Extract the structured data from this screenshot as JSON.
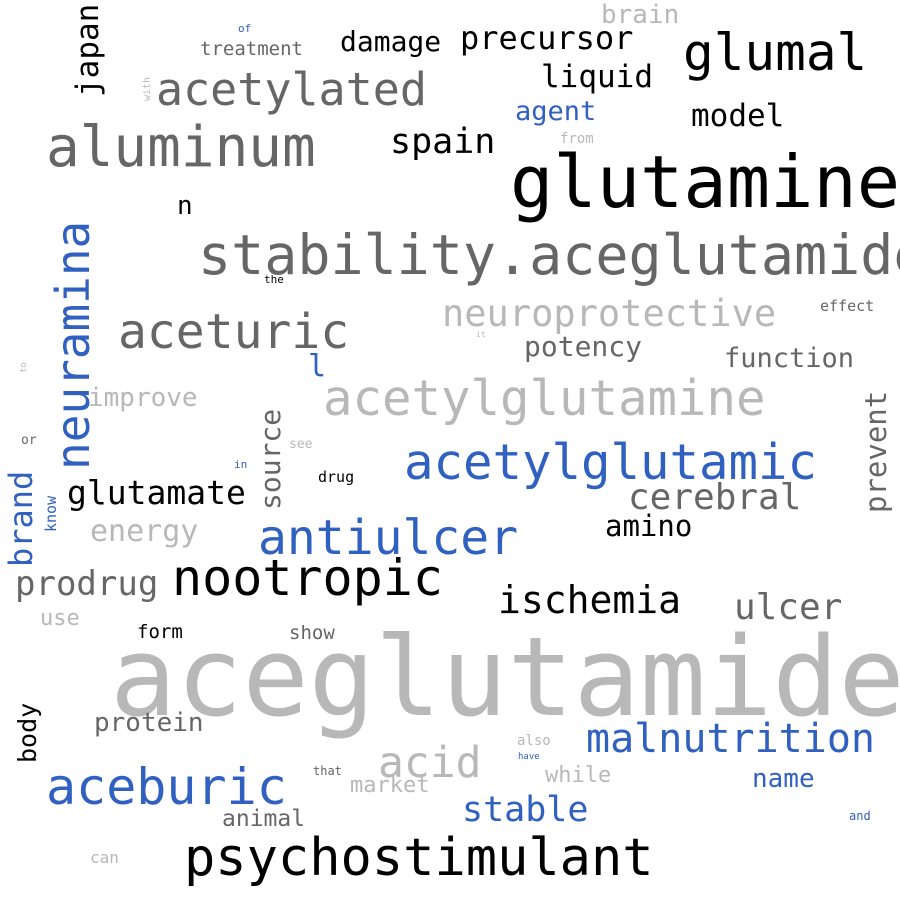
{
  "palette": {
    "black": "#000000",
    "dark_gray": "#666666",
    "light_gray": "#b8b8b8",
    "blue": "#3060c0"
  },
  "words": [
    "aceglutamide",
    "glutamine",
    "stability.aceglutamide",
    "aluminum",
    "acetylglutamine",
    "acetylglutamic",
    "nootropic",
    "psychostimulant",
    "glumal",
    "neuramina",
    "aceturic",
    "acetylated",
    "antiulcer",
    "aceburic",
    "malnutrition",
    "neuroprotective",
    "ischemia",
    "acid",
    "cerebral",
    "precursor",
    "glutamate",
    "spain",
    "prodrug",
    "ulcer",
    "damage",
    "stable",
    "brand",
    "liquid",
    "model",
    "japan",
    "potency",
    "amino",
    "function",
    "agent",
    "energy",
    "source",
    "prevent",
    "improve",
    "protein",
    "name",
    "brain",
    "treatment",
    "animal",
    "market",
    "while",
    "body",
    "n",
    "l",
    "form",
    "show",
    "use",
    "effect",
    "drug",
    "know",
    "also",
    "can",
    "from",
    "that",
    "the",
    "or",
    "see",
    "in",
    "of",
    "with",
    "have",
    "and",
    "to",
    "it"
  ]
}
